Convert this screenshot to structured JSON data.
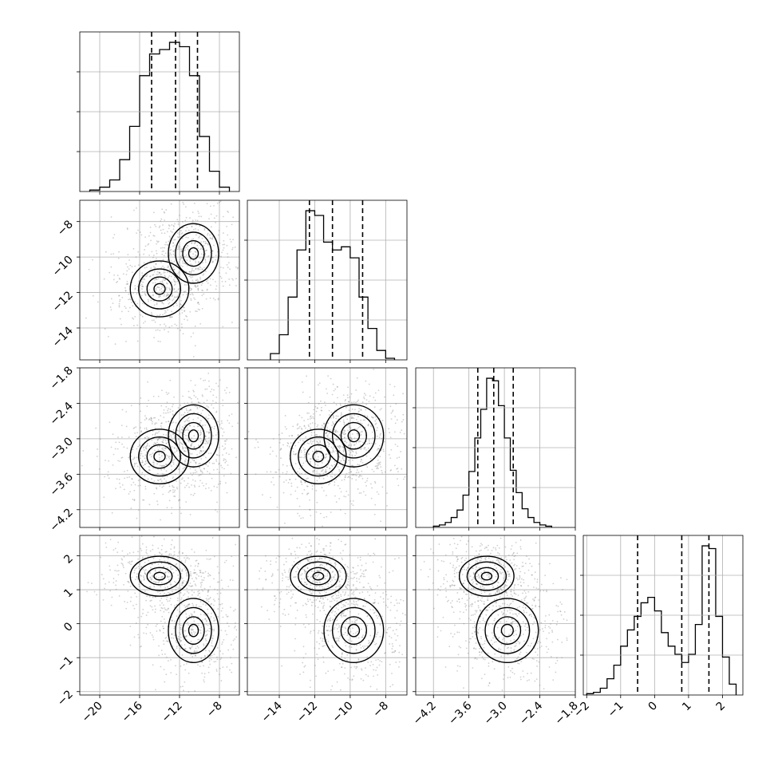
{
  "chart_data": {
    "type": "corner",
    "grid": true,
    "parameters": [
      {
        "ticks": [
          -20,
          -16,
          -12,
          -8
        ],
        "tick_labels": [
          "−20",
          "−16",
          "−12",
          "−8"
        ],
        "range": [
          -22,
          -6
        ],
        "hist_edges": [
          -21,
          -20,
          -19,
          -18,
          -17,
          -16,
          -15,
          -14,
          -13,
          -12,
          -11,
          -10,
          -9,
          -8,
          -7
        ],
        "hist_counts": [
          1,
          3,
          8,
          22,
          45,
          80,
          95,
          98,
          103,
          100,
          80,
          38,
          14,
          3
        ],
        "quantiles": [
          -14.8,
          -12.4,
          -10.2
        ]
      },
      {
        "ticks": [
          -14,
          -12,
          -10,
          -8
        ],
        "tick_labels": [
          "−14",
          "−12",
          "−10",
          "−8"
        ],
        "range": [
          -15.8,
          -6.8
        ],
        "hist_edges": [
          -14.5,
          -14,
          -13.5,
          -13,
          -12.5,
          -12,
          -11.5,
          -11,
          -10.5,
          -10,
          -9.5,
          -9,
          -8.5,
          -8,
          -7.5
        ],
        "hist_counts": [
          4,
          16,
          40,
          70,
          95,
          92,
          75,
          70,
          72,
          65,
          40,
          20,
          6,
          1
        ],
        "quantiles": [
          -12.3,
          -11.0,
          -9.3
        ]
      },
      {
        "ticks": [
          -4.2,
          -3.6,
          -3.0,
          -2.4,
          -1.8
        ],
        "tick_labels": [
          "−4.2",
          "−3.6",
          "−3.0",
          "−2.4",
          "−1.8"
        ],
        "range": [
          -4.5,
          -1.8
        ],
        "hist_edges": [
          -4.2,
          -4.1,
          -4.0,
          -3.9,
          -3.8,
          -3.7,
          -3.6,
          -3.5,
          -3.4,
          -3.3,
          -3.2,
          -3.1,
          -3.0,
          -2.9,
          -2.8,
          -2.7,
          -2.6,
          -2.5,
          -2.4,
          -2.3,
          -2.2
        ],
        "hist_counts": [
          1,
          2,
          4,
          8,
          14,
          26,
          45,
          72,
          95,
          120,
          118,
          98,
          72,
          46,
          28,
          15,
          8,
          4,
          2,
          1
        ],
        "quantiles": [
          -3.45,
          -3.18,
          -2.85
        ]
      },
      {
        "ticks": [
          -2,
          -1,
          0,
          1,
          2
        ],
        "tick_labels": [
          "−2",
          "−1",
          "0",
          "1",
          "2"
        ],
        "range": [
          -2.1,
          2.6
        ],
        "hist_edges": [
          -2.0,
          -1.8,
          -1.6,
          -1.4,
          -1.2,
          -1.0,
          -0.8,
          -0.6,
          -0.4,
          -0.2,
          0.0,
          0.2,
          0.4,
          0.6,
          0.8,
          1.0,
          1.2,
          1.4,
          1.6,
          1.8,
          2.0,
          2.2,
          2.4
        ],
        "hist_counts": [
          1,
          2,
          5,
          12,
          22,
          36,
          48,
          58,
          68,
          72,
          62,
          46,
          36,
          30,
          24,
          30,
          52,
          110,
          108,
          58,
          28,
          8
        ],
        "quantiles": [
          -0.5,
          0.8,
          1.6
        ]
      }
    ]
  }
}
